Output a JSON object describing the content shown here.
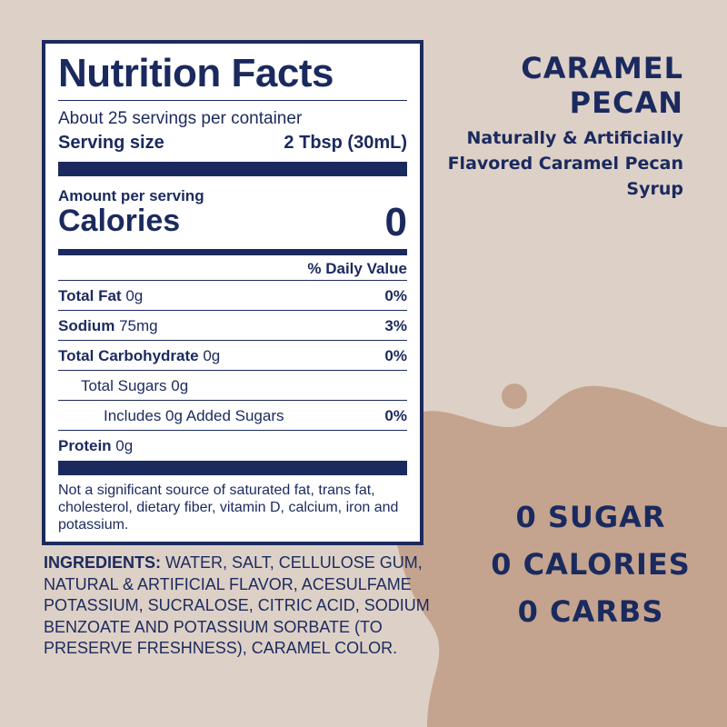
{
  "nutrition_facts": {
    "title": "Nutrition Facts",
    "servings": "About 25 servings per container",
    "serving_size_label": "Serving size",
    "serving_size_value": "2 Tbsp (30mL)",
    "amount_per_serving": "Amount per serving",
    "calories_label": "Calories",
    "calories_value": 0,
    "daily_value_header": "% Daily Value",
    "rows": [
      {
        "name": "Total Fat",
        "amount": "0g",
        "dv": "0%",
        "bold": true,
        "indent": 0
      },
      {
        "name": "Sodium",
        "amount": "75mg",
        "dv": "3%",
        "bold": true,
        "indent": 0
      },
      {
        "name": "Total Carbohydrate",
        "amount": "0g",
        "dv": "0%",
        "bold": true,
        "indent": 0
      },
      {
        "name": "Total Sugars",
        "amount": "0g",
        "bold": false,
        "indent": 1
      },
      {
        "name": "Includes 0g Added Sugars",
        "dv": "0%",
        "bold": false,
        "indent": 2
      },
      {
        "name": "Protein",
        "amount": "0g",
        "bold": true,
        "indent": 0
      }
    ],
    "footnote": "Not a significant source of saturated fat, trans fat, cholesterol, dietary fiber, vitamin D, calcium, iron and potassium."
  },
  "ingredients": {
    "label": "INGREDIENTS:",
    "text": "WATER, SALT, CELLULOSE GUM, NATURAL & ARTIFICIAL FLAVOR, ACE­SULFAME POTASSIUM, SUCRALOSE, CITRIC ACID, SODIUM BENZOATE AND POTASSIUM SORBATE (TO PRESERVE FRESHNESS), CARAMEL COLOR."
  },
  "product": {
    "name": "CARAMEL PECAN",
    "description": "Naturally & Artificially Flavored Caramel Pecan Syrup"
  },
  "claims": [
    "0 SUGAR",
    "0 CALORIES",
    "0 CARBS"
  ]
}
